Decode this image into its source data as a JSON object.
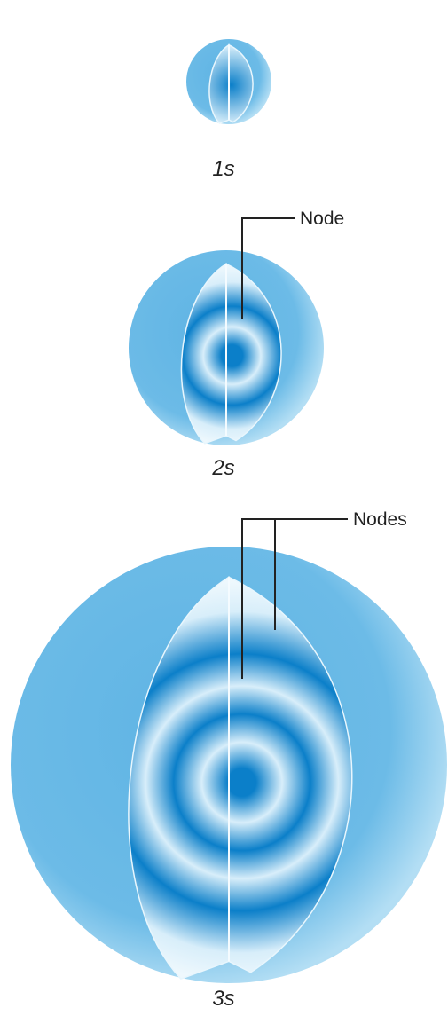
{
  "orbitals": [
    {
      "label": "1s"
    },
    {
      "label": "2s"
    },
    {
      "label": "3s"
    }
  ],
  "callouts": [
    {
      "label": "Node"
    },
    {
      "label": "Nodes"
    }
  ]
}
